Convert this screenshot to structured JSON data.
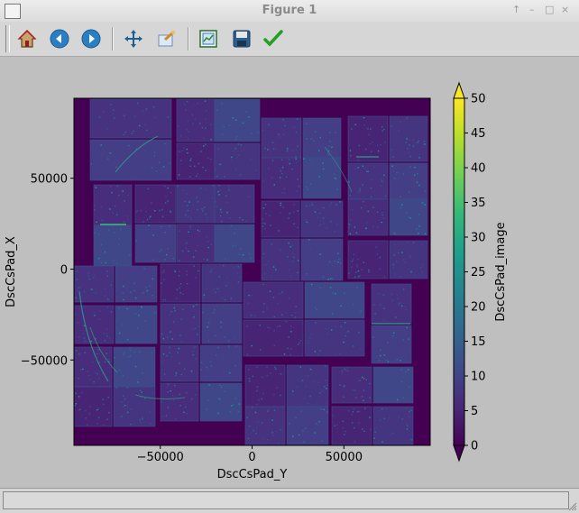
{
  "window": {
    "title": "Figure 1",
    "controls": [
      "↑",
      "–",
      "□",
      "×"
    ]
  },
  "toolbar": {
    "tools": [
      "home-icon",
      "back-icon",
      "forward-icon",
      "pan-icon",
      "zoom-icon",
      "subplots-icon",
      "save-icon",
      "edit-icon"
    ]
  },
  "colors": {
    "plot_bg": "#440154",
    "cmap": [
      "#440154",
      "#482878",
      "#3e4a89",
      "#31688e",
      "#26828e",
      "#1f9e89",
      "#35b779",
      "#6ece58",
      "#b5de2b",
      "#fde725"
    ]
  },
  "chart_data": {
    "type": "heatmap",
    "xlabel": "DscCsPad_Y",
    "ylabel": "DscCsPad_X",
    "xticks": [
      "−50000",
      "0",
      "50000"
    ],
    "xtick_values": [
      -50000,
      0,
      50000
    ],
    "yticks": [
      "50000",
      "0",
      "−50000"
    ],
    "ytick_values": [
      50000,
      0,
      -50000
    ],
    "xlim": [
      -97000,
      97000
    ],
    "ylim": [
      -97000,
      94000
    ],
    "colorbar": {
      "label": "DscCsPad_image",
      "ticks": [
        "0",
        "5",
        "10",
        "15",
        "20",
        "25",
        "30",
        "35",
        "40",
        "45",
        "50"
      ],
      "tick_values": [
        0,
        5,
        10,
        15,
        20,
        25,
        30,
        35,
        40,
        45,
        50
      ],
      "min": 0,
      "max": 50,
      "extend": "both"
    }
  }
}
